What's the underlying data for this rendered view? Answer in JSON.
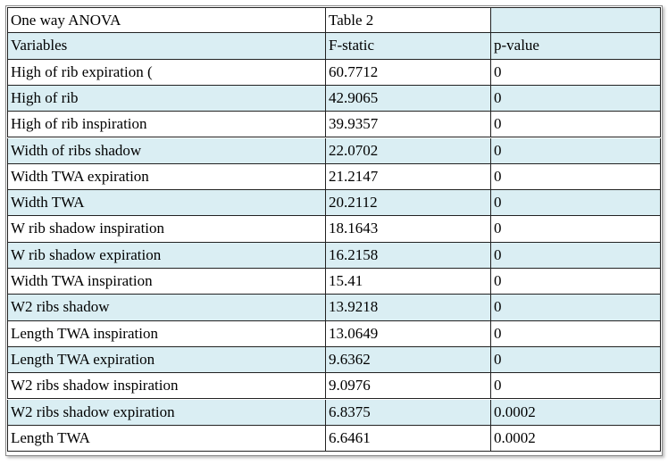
{
  "table": {
    "title": "One way ANOVA",
    "caption": "Table 2",
    "header": [
      "Variables",
      "F-static",
      "p-value"
    ],
    "rows": [
      [
        "High of rib expiration (",
        "60.7712",
        "0"
      ],
      [
        "High of rib",
        "42.9065",
        "0"
      ],
      [
        "High of rib inspiration",
        "39.9357",
        "0"
      ],
      [
        "Width of ribs shadow",
        "22.0702",
        "0"
      ],
      [
        "Width TWA expiration",
        "21.2147",
        "0"
      ],
      [
        "Width TWA",
        "20.2112",
        "0"
      ],
      [
        "W rib shadow inspiration",
        "18.1643",
        "0"
      ],
      [
        "W rib shadow expiration",
        "16.2158",
        "0"
      ],
      [
        "Width TWA inspiration",
        "15.41",
        "0"
      ],
      [
        "W2 ribs shadow",
        "13.9218",
        "0"
      ],
      [
        "Length TWA inspiration",
        "13.0649",
        "0"
      ],
      [
        "Length TWA expiration",
        "9.6362",
        "0"
      ],
      [
        "W2 ribs shadow inspiration",
        "9.0976",
        "0"
      ],
      [
        "W2 ribs shadow expiration",
        "6.8375",
        "0.0002"
      ],
      [
        "Length TWA",
        "6.6461",
        "0.0002"
      ]
    ]
  }
}
